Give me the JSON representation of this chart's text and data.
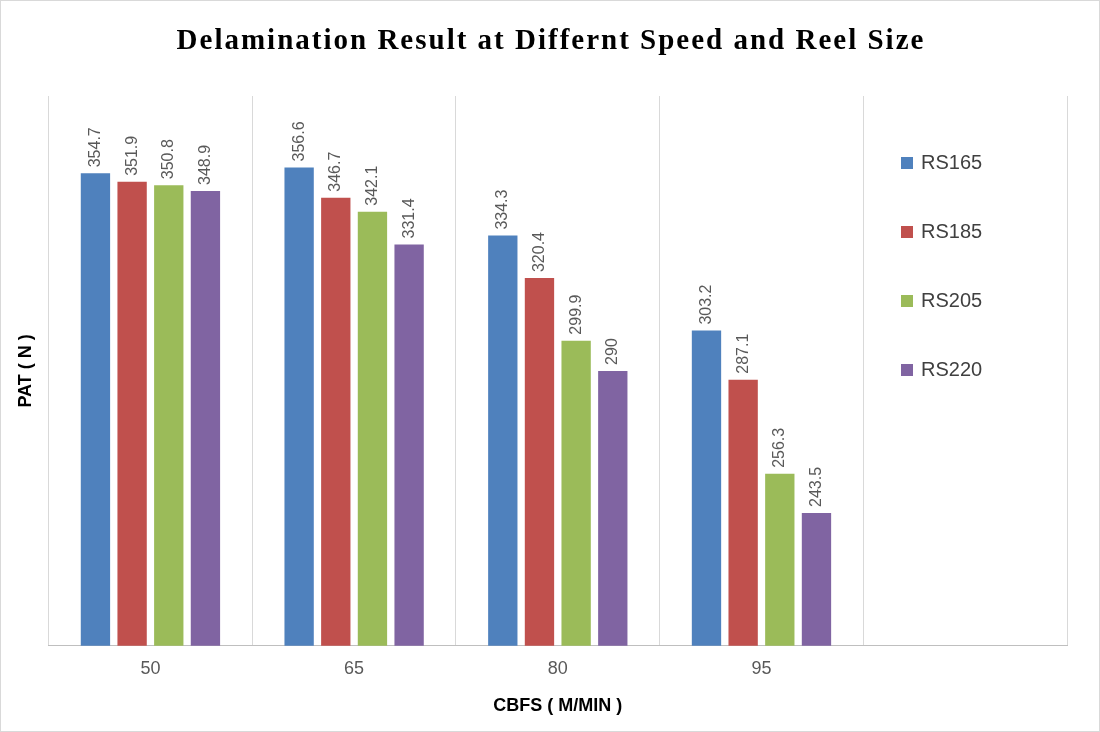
{
  "chart_data": {
    "type": "bar",
    "title": "Delamination Result at  Differnt Speed and Reel Size",
    "xlabel": "CBFS ( M/MIN )",
    "ylabel": "PAT ( N )",
    "categories": [
      "50",
      "65",
      "80",
      "95",
      null
    ],
    "series": [
      {
        "name": "RS165",
        "color": "#4f81bd",
        "values": [
          354.7,
          356.6,
          334.3,
          303.2,
          null
        ]
      },
      {
        "name": "RS185",
        "color": "#c0504d",
        "values": [
          351.9,
          346.7,
          320.4,
          287.1,
          null
        ]
      },
      {
        "name": "RS205",
        "color": "#9bbb59",
        "values": [
          350.8,
          342.1,
          299.9,
          256.3,
          null
        ]
      },
      {
        "name": "RS220",
        "color": "#8064a2",
        "values": [
          348.9,
          331.4,
          290,
          243.5,
          null
        ]
      }
    ],
    "ylim": [
      200,
      380
    ],
    "tick_labels": "x",
    "grid": "x",
    "legend": "right",
    "data_labels": true
  }
}
